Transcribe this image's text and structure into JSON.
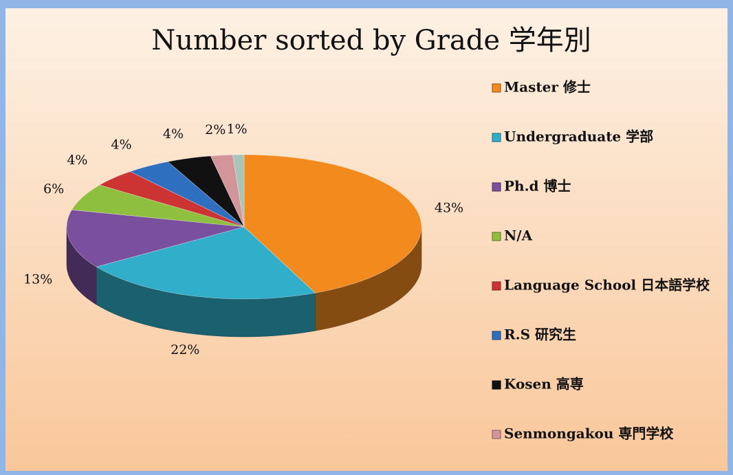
{
  "chart_data": {
    "type": "pie3d",
    "title": "Number sorted by Grade 学年別",
    "categories": [
      "Master 修士",
      "Undergraduate 学部",
      "Ph.d 博士",
      "N/A",
      "Language School 日本語学校",
      "R.S 研究生",
      "Kosen 高専",
      "Senmongakou 専門学校",
      null
    ],
    "values": [
      43,
      22,
      13,
      6,
      4,
      4,
      4,
      2,
      1
    ],
    "value_labels": [
      "43%",
      "22%",
      "13%",
      "6%",
      "4%",
      "4%",
      "4%",
      "2%",
      "1%"
    ],
    "colors": [
      "#f28a1e",
      "#31aec9",
      "#7a4f9e",
      "#8fbf3f",
      "#cc3333",
      "#2f6fc0",
      "#111111",
      "#d4959a",
      "#a9c4b8"
    ],
    "legend": "right"
  }
}
